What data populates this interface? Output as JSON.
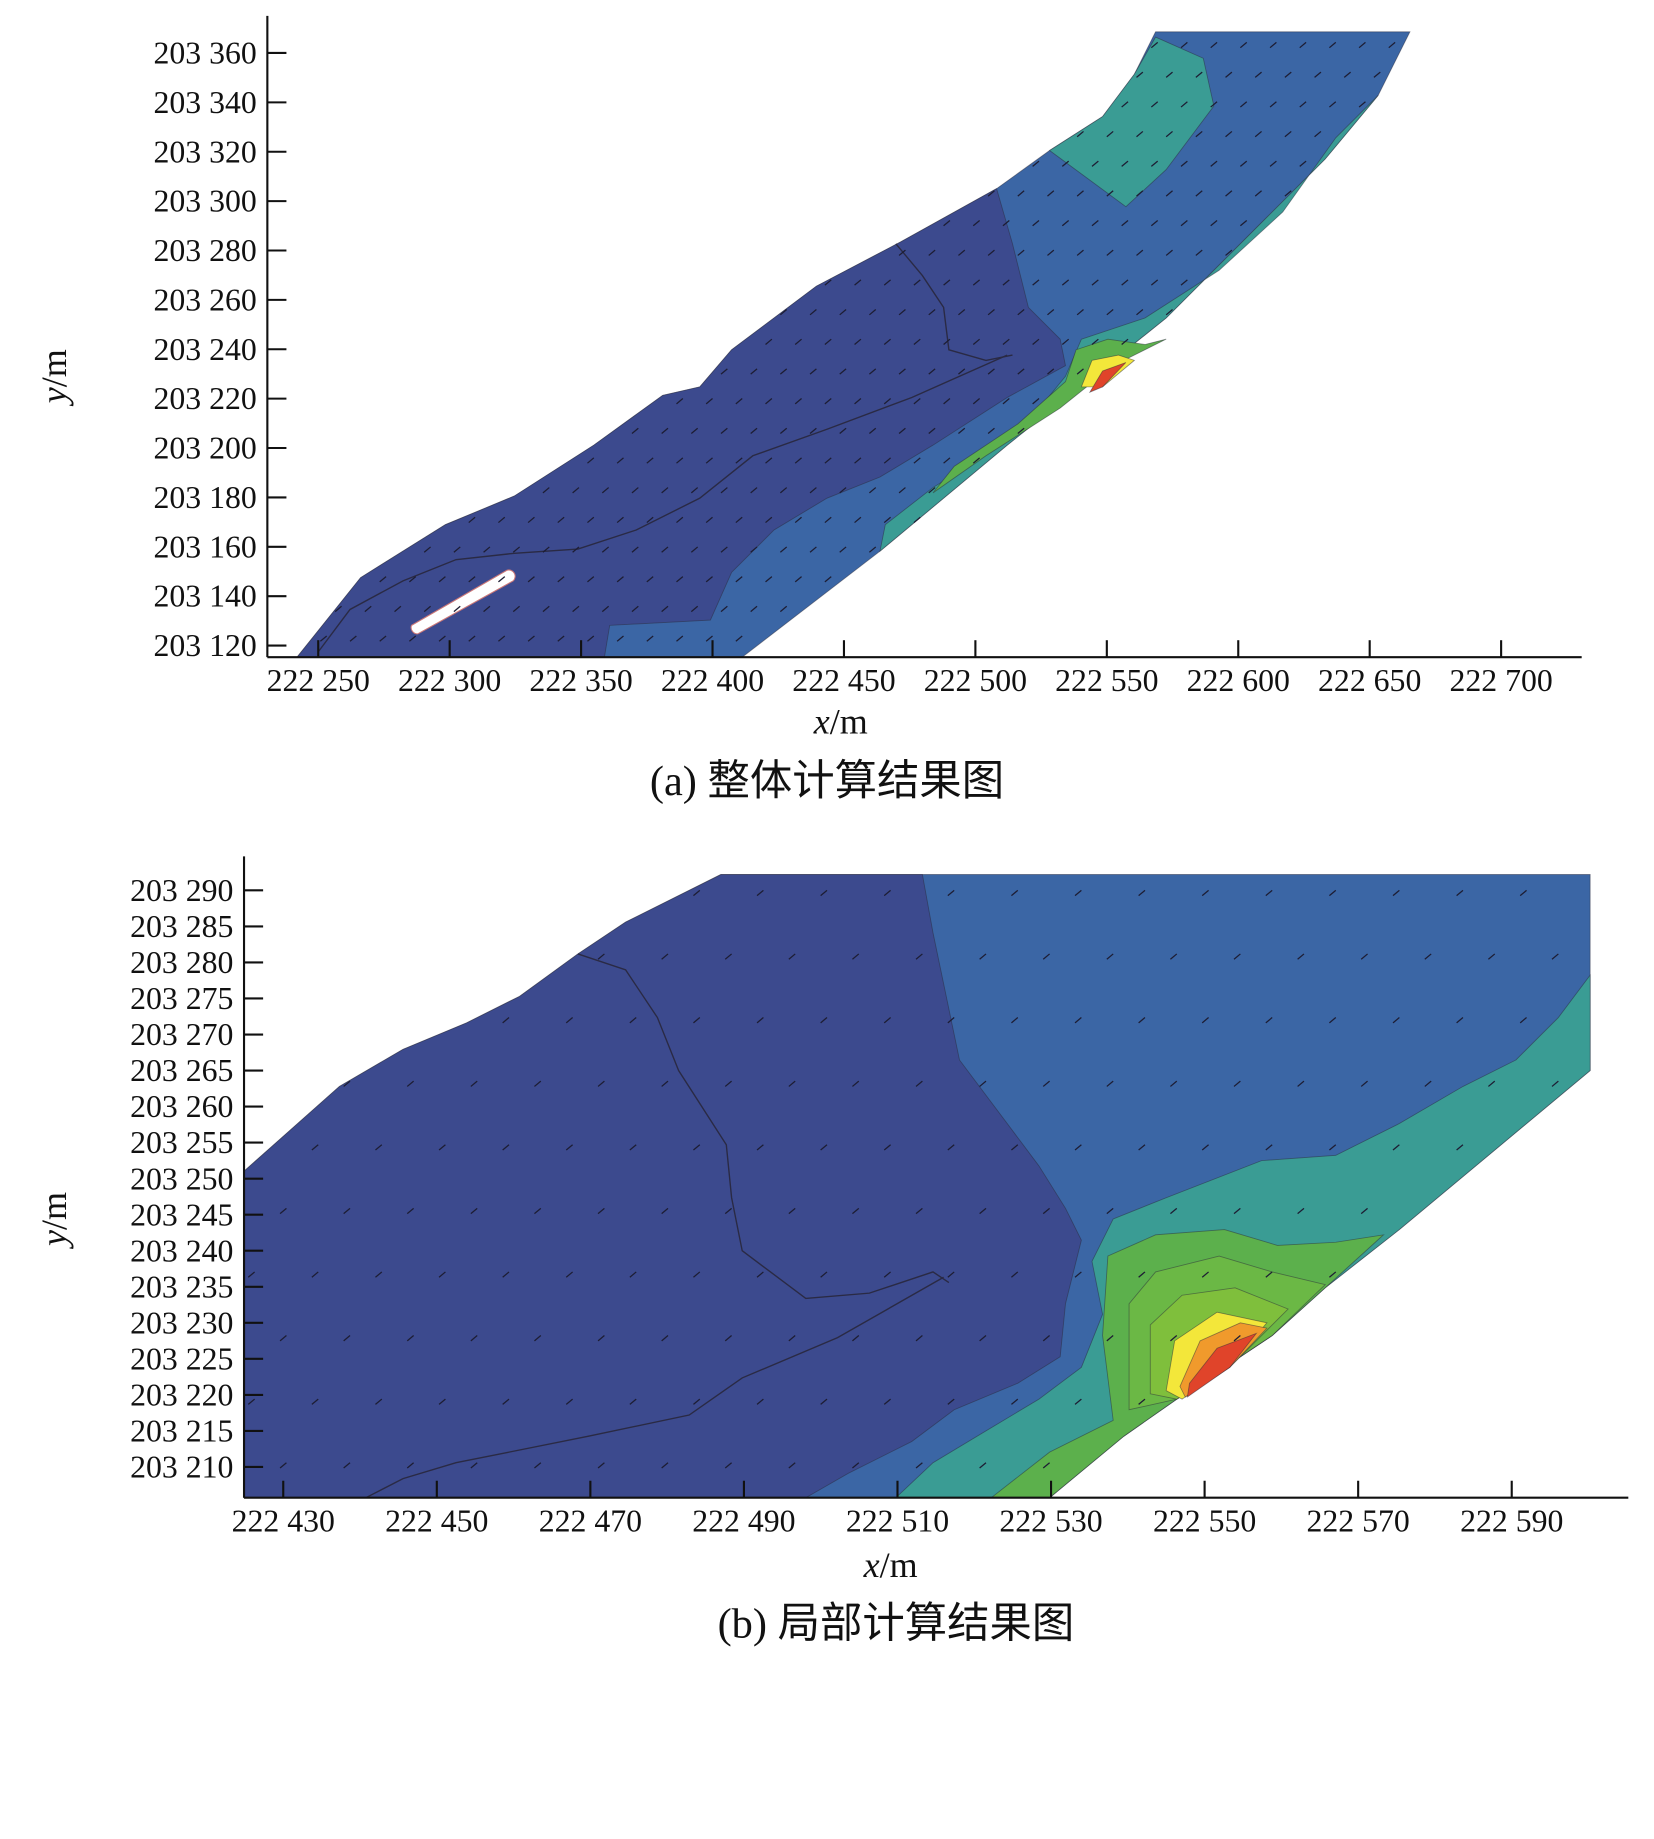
{
  "chart_data": [
    {
      "type": "heatmap",
      "subtype": "filled contour with velocity vectors",
      "caption": "(a) 整体计算结果图",
      "xlabel_var": "x",
      "xlabel_unit": "/m",
      "ylabel_var": "y",
      "ylabel_unit": "/m",
      "xlim": [
        222230,
        222730
      ],
      "ylim": [
        203115,
        203375
      ],
      "x_ticks": [
        222250,
        222300,
        222350,
        222400,
        222450,
        222500,
        222550,
        222600,
        222650,
        222700
      ],
      "x_tick_labels": [
        "222 250",
        "222 300",
        "222 350",
        "222 400",
        "222 450",
        "222 500",
        "222 550",
        "222 600",
        "222 650",
        "222 700"
      ],
      "y_ticks": [
        203120,
        203140,
        203160,
        203180,
        203200,
        203220,
        203240,
        203260,
        203280,
        203300,
        203320,
        203340,
        203360
      ],
      "y_tick_labels": [
        "203 120",
        "203 140",
        "203 160",
        "203 180",
        "203 200",
        "203 220",
        "203 240",
        "203 260",
        "203 280",
        "203 300",
        "203 320",
        "203 340",
        "203 360"
      ],
      "grid": false,
      "hotspot": {
        "x": 222550,
        "y": 203225
      }
    },
    {
      "type": "heatmap",
      "subtype": "filled contour with velocity vectors",
      "caption": "(b) 局部计算结果图",
      "xlabel_var": "x",
      "xlabel_unit": "/m",
      "ylabel_var": "y",
      "ylabel_unit": "/m",
      "xlim": [
        222425,
        222605
      ],
      "ylim": [
        203206,
        203294
      ],
      "x_ticks": [
        222430,
        222450,
        222470,
        222490,
        222510,
        222530,
        222550,
        222570,
        222590
      ],
      "x_tick_labels": [
        "222 430",
        "222 450",
        "222 470",
        "222 490",
        "222 510",
        "222 530",
        "222 550",
        "222 570",
        "222 590"
      ],
      "y_ticks": [
        203210,
        203215,
        203220,
        203225,
        203230,
        203235,
        203240,
        203245,
        203250,
        203255,
        203260,
        203265,
        203270,
        203275,
        203280,
        203285,
        203290
      ],
      "y_tick_labels": [
        "203 210",
        "203 215",
        "203 220",
        "203 225",
        "203 230",
        "203 235",
        "203 240",
        "203 245",
        "203 250",
        "203 255",
        "203 260",
        "203 265",
        "203 270",
        "203 275",
        "203 280",
        "203 285",
        "203 290"
      ],
      "grid": false,
      "hotspot": {
        "x": 222555,
        "y": 203225
      }
    }
  ],
  "colors": {
    "level_1": "#3c4a8e",
    "level_2": "#3b66a5",
    "level_3": "#3a9c94",
    "level_4": "#5cb04c",
    "level_5": "#7fbf3c",
    "level_6": "#f3e73a",
    "level_7": "#f09a2c",
    "level_8": "#e0442a"
  }
}
